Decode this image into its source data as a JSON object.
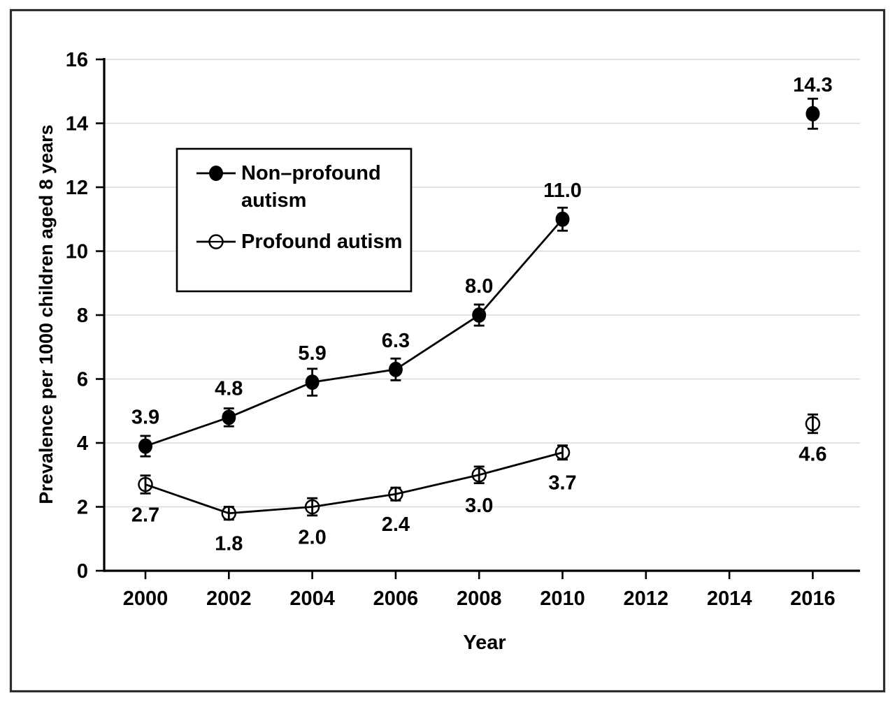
{
  "colors": {
    "foreground": "#000000",
    "gridline": "#d9d9d9",
    "axis": "#000000",
    "figure_border": "#2e2e2e",
    "background": "#ffffff",
    "open_marker_fill": "#ffffff"
  },
  "legend": {
    "series1_lines": [
      "Non–profound",
      "autism"
    ],
    "series2_label": "Profound autism"
  },
  "chart_data": {
    "type": "line",
    "title": "",
    "xlabel": "Year",
    "ylabel": "Prevalence per 1000 children aged 8 years",
    "xlim": [
      1999,
      2017.1
    ],
    "ylim": [
      0,
      16
    ],
    "x_ticks": [
      2000,
      2002,
      2004,
      2006,
      2008,
      2010,
      2012,
      2014,
      2016
    ],
    "y_ticks": [
      0,
      2,
      4,
      6,
      8,
      10,
      12,
      14,
      16
    ],
    "grid": "horizontal",
    "legend_position": "upper-left-inside",
    "series": [
      {
        "name": "Non–profound autism",
        "marker": "filled-circle",
        "label_position": "above",
        "line_range": [
          2000,
          2010
        ],
        "x": [
          2000,
          2002,
          2004,
          2006,
          2008,
          2010,
          2016
        ],
        "y": [
          3.9,
          4.8,
          5.9,
          6.3,
          8.0,
          11.0,
          14.3
        ],
        "labels": [
          "3.9",
          "4.8",
          "5.9",
          "6.3",
          "8.0",
          "11.0",
          "14.3"
        ],
        "error": [
          0.32,
          0.28,
          0.42,
          0.34,
          0.33,
          0.36,
          0.47
        ]
      },
      {
        "name": "Profound autism",
        "marker": "open-circle",
        "label_position": "below",
        "line_range": [
          2000,
          2010
        ],
        "x": [
          2000,
          2002,
          2004,
          2006,
          2008,
          2010,
          2016
        ],
        "y": [
          2.7,
          1.8,
          2.0,
          2.4,
          3.0,
          3.7,
          4.6
        ],
        "labels": [
          "2.7",
          "1.8",
          "2.0",
          "2.4",
          "3.0",
          "3.7",
          "4.6"
        ],
        "error": [
          0.28,
          0.2,
          0.27,
          0.2,
          0.26,
          0.22,
          0.29
        ]
      }
    ]
  }
}
